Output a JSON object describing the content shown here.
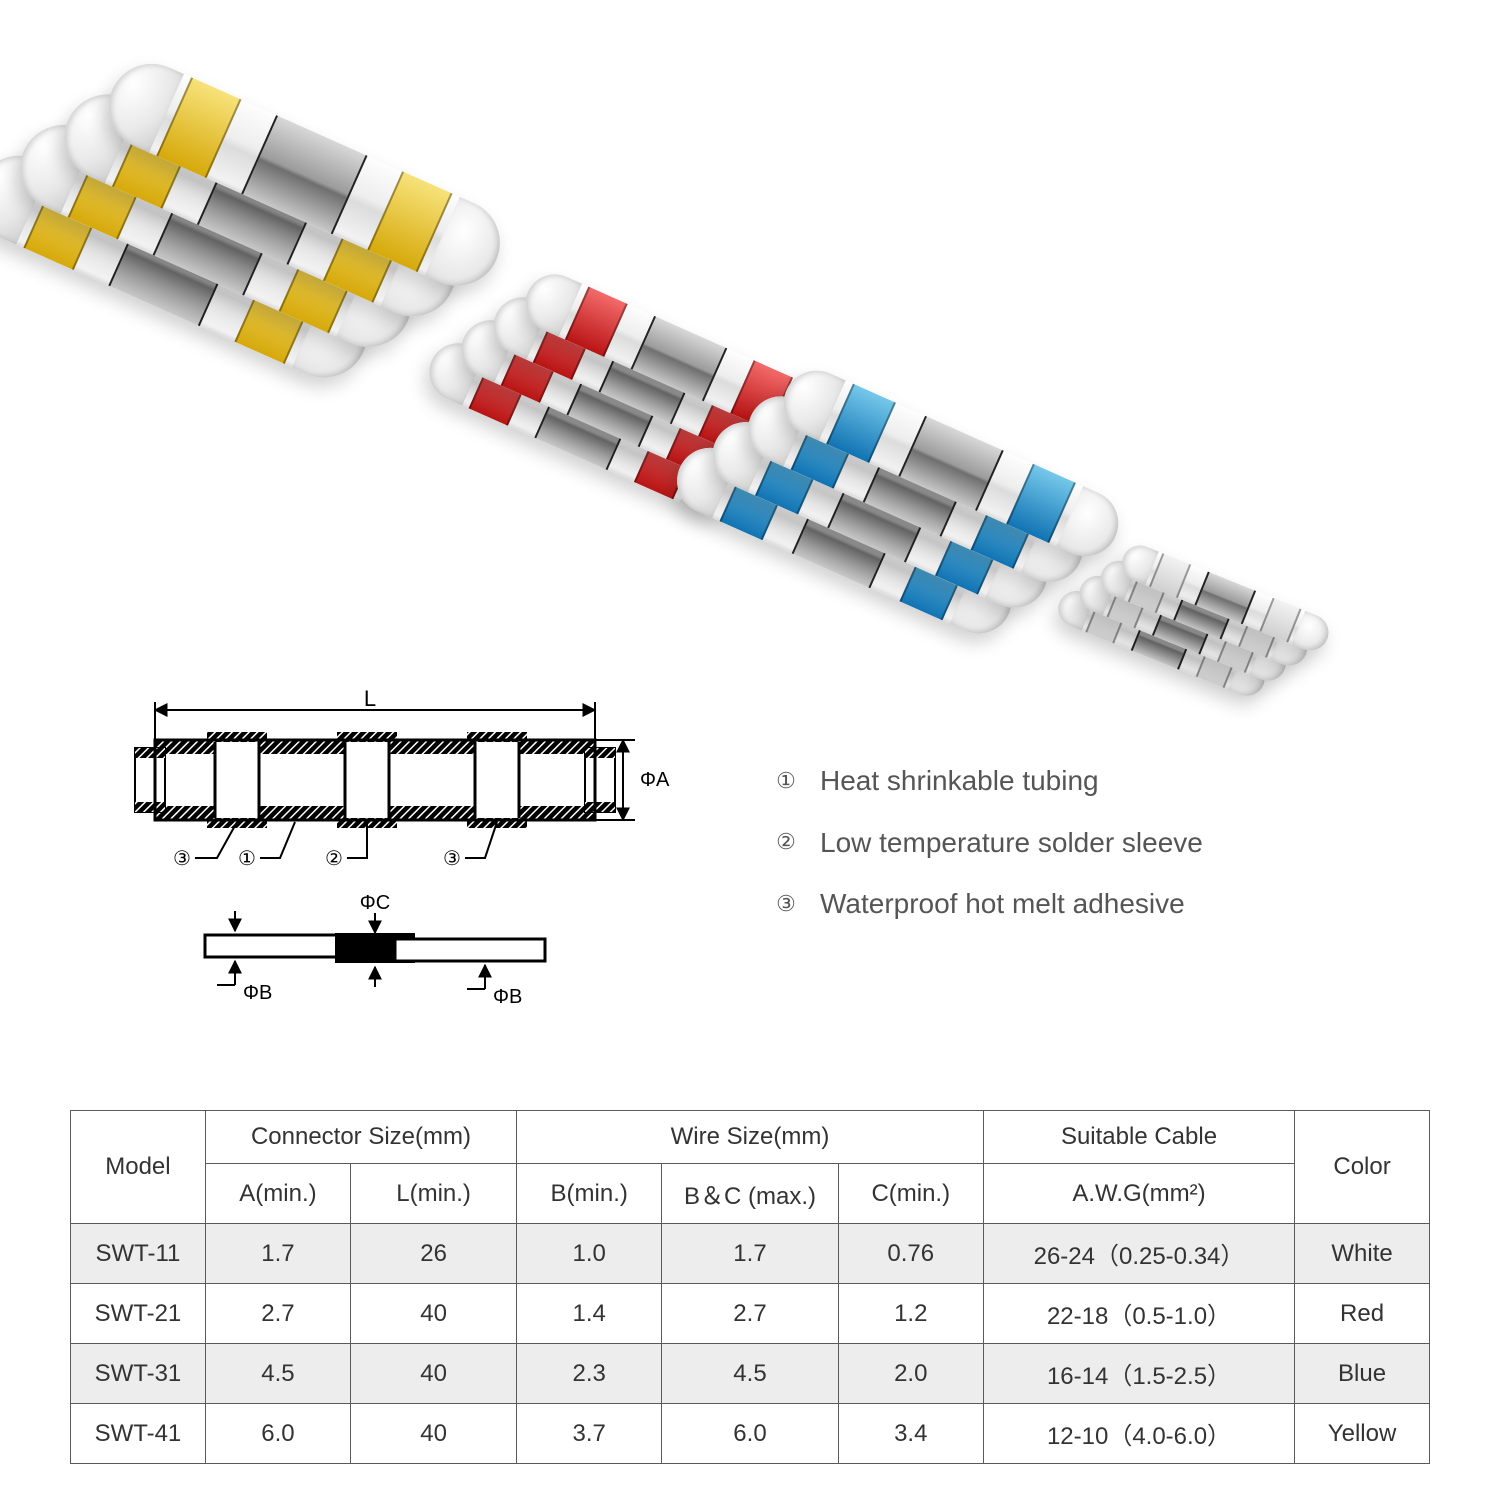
{
  "product": {
    "variants": [
      {
        "key": "yellow",
        "ring_color_top": "#f7e27a",
        "ring_color_bottom": "#d6a90b",
        "count": 4
      },
      {
        "key": "red",
        "ring_color_top": "#f36a6a",
        "ring_color_bottom": "#b81414",
        "count": 4
      },
      {
        "key": "blue",
        "ring_color_top": "#75c8ea",
        "ring_color_bottom": "#1173b3",
        "count": 4
      },
      {
        "key": "white",
        "ring_color_top": "#f2f2f2",
        "ring_color_bottom": "#cfcfcf",
        "count": 4
      }
    ]
  },
  "diagram": {
    "labels": {
      "L": "L",
      "phiA": "ΦA",
      "phiB": "ΦB",
      "phiC": "ΦC",
      "callout1": "①",
      "callout2": "②",
      "callout3": "③"
    },
    "stroke": "#000000",
    "fill_hatch": "#000000",
    "fontsize": 20
  },
  "legend": {
    "items": [
      {
        "num": "①",
        "text": "Heat shrinkable tubing"
      },
      {
        "num": "②",
        "text": "Low temperature solder sleeve"
      },
      {
        "num": "③",
        "text": "Waterproof hot melt adhesive"
      }
    ],
    "fontsize": 28,
    "color": "#555555"
  },
  "table": {
    "header1": {
      "model": "Model",
      "connector_size": "Connector Size(mm)",
      "wire_size": "Wire Size(mm)",
      "suitable_cable": "Suitable Cable",
      "color": "Color"
    },
    "header2": {
      "a": "A(min.)",
      "l": "L(min.)",
      "b": "B(min.)",
      "bc": "B＆C (max.)",
      "c": "C(min.)",
      "awg": "A.W.G(mm²)"
    },
    "rows": [
      {
        "model": "SWT-11",
        "a": "1.7",
        "l": "26",
        "b": "1.0",
        "bc": "1.7",
        "c": "0.76",
        "cable": "26-24（0.25-0.34）",
        "color": "White",
        "shade": true
      },
      {
        "model": "SWT-21",
        "a": "2.7",
        "l": "40",
        "b": "1.4",
        "bc": "2.7",
        "c": "1.2",
        "cable": "22-18（0.5-1.0）",
        "color": "Red",
        "shade": false
      },
      {
        "model": "SWT-31",
        "a": "4.5",
        "l": "40",
        "b": "2.3",
        "bc": "4.5",
        "c": "2.0",
        "cable": "16-14（1.5-2.5）",
        "color": "Blue",
        "shade": true
      },
      {
        "model": "SWT-41",
        "a": "6.0",
        "l": "40",
        "b": "3.7",
        "bc": "6.0",
        "c": "3.4",
        "cable": "12-10（4.0-6.0）",
        "color": "Yellow",
        "shade": false
      }
    ],
    "border_color": "#5a5a5a",
    "shade_color": "#ededed",
    "fontsize": 24
  }
}
